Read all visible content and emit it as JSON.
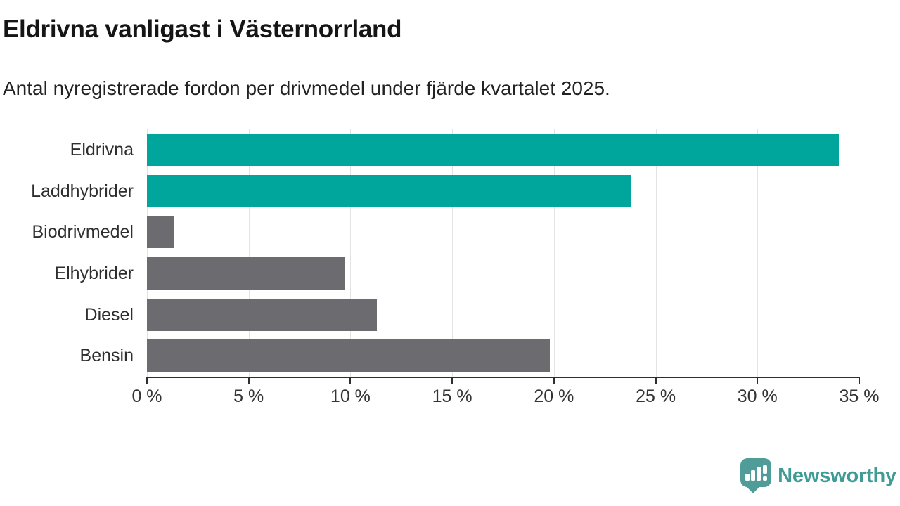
{
  "header": {
    "title": "Eldrivna vanligast i Västernorrland",
    "subtitle": "Antal nyregistrerade fordon per drivmedel under fjärde kvartalet 2025."
  },
  "chart_data": {
    "type": "bar",
    "orientation": "horizontal",
    "title": "Eldrivna vanligast i Västernorrland",
    "subtitle": "Antal nyregistrerade fordon per drivmedel under fjärde kvartalet 2025.",
    "categories": [
      "Eldrivna",
      "Laddhybrider",
      "Biodrivmedel",
      "Elhybrider",
      "Diesel",
      "Bensin"
    ],
    "values": [
      34.0,
      23.8,
      1.3,
      9.7,
      11.3,
      19.8
    ],
    "unit": "%",
    "xlabel": "",
    "ylabel": "",
    "xlim": [
      0,
      35
    ],
    "xtick_values": [
      0,
      5,
      10,
      15,
      20,
      25,
      30,
      35
    ],
    "xtick_labels": [
      "0 %",
      "5 %",
      "10 %",
      "15 %",
      "20 %",
      "25 %",
      "30 %",
      "35 %"
    ],
    "bar_colors": [
      "highlight",
      "highlight",
      "neutral",
      "neutral",
      "neutral",
      "neutral"
    ],
    "palette": {
      "highlight": "#00a59b",
      "neutral": "#6b6b70"
    },
    "grid": "vertical-gridlines",
    "legend": "none"
  },
  "footer": {
    "logo_text": "Newsworthy",
    "logo_color": "#3f9b95",
    "logo_icon": "newsworthy-speech-bubble-barchart-icon"
  },
  "colors": {
    "axis": "#2e2e2e",
    "grid": "#e3e3e3",
    "title_text": "#151515",
    "label_text": "#2e2e2e",
    "tick_text": "#333333"
  }
}
